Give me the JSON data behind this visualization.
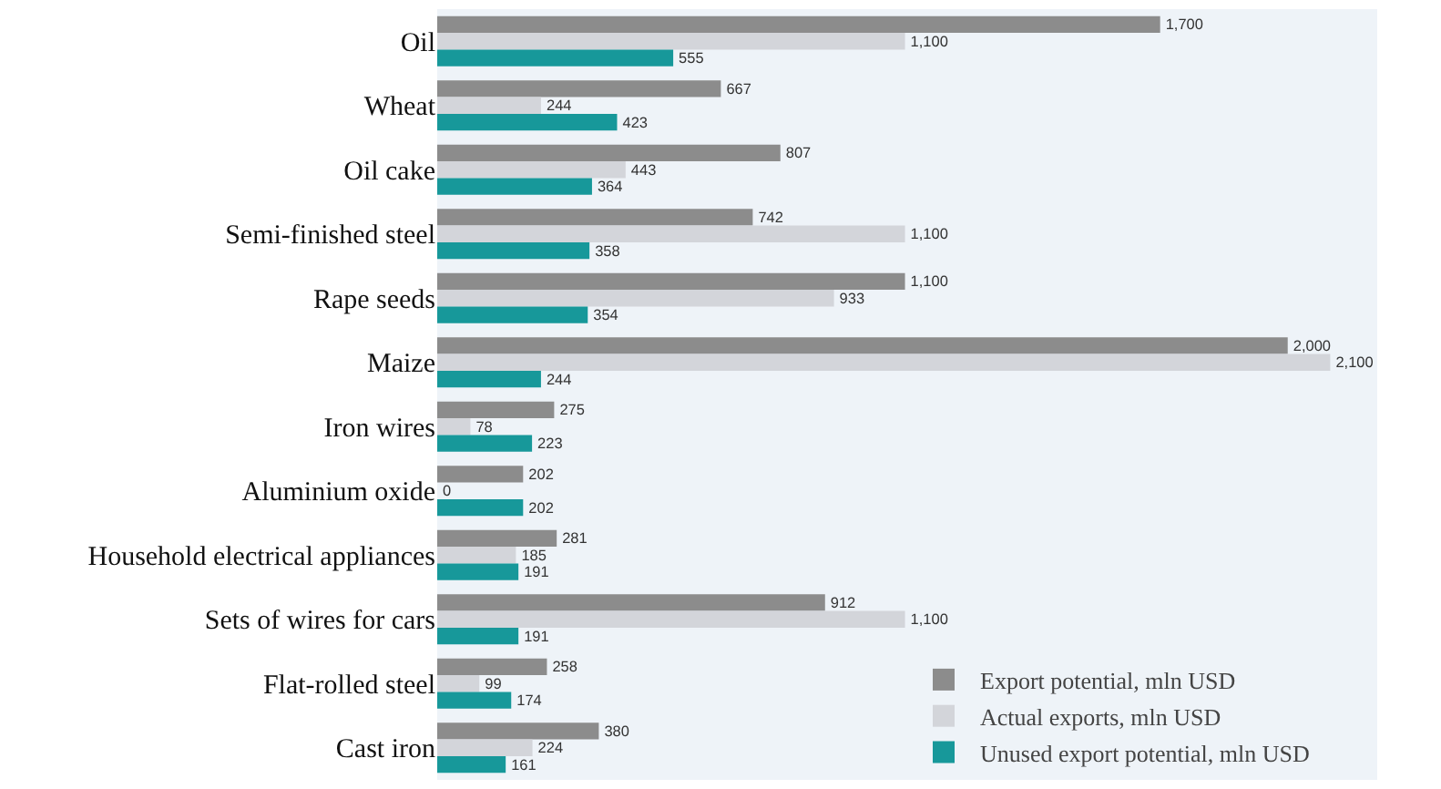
{
  "chart_data": {
    "type": "bar",
    "orientation": "horizontal",
    "legend": "bottom right",
    "categories": [
      "Oil",
      "Wheat",
      "Oil cake",
      "Semi-finished steel",
      "Rape seeds",
      "Maize",
      "Iron wires",
      "Aluminium oxide",
      "Household electrical appliances",
      "Sets of wires for cars",
      "Flat-rolled steel",
      "Cast iron"
    ],
    "series": [
      {
        "name": "Export potential, mln USD",
        "color": "#8c8c8c",
        "values": [
          1700,
          667,
          807,
          742,
          1100,
          2000,
          275,
          202,
          281,
          912,
          258,
          380
        ],
        "value_labels": [
          "1,700",
          "667",
          "807",
          "742",
          "1,100",
          "2,000",
          "275",
          "202",
          "281",
          "912",
          "258",
          "380"
        ]
      },
      {
        "name": "Actual exports, mln USD",
        "color": "#d3d5da",
        "values": [
          1100,
          244,
          443,
          1100,
          933,
          2100,
          78,
          0,
          185,
          1100,
          99,
          224
        ],
        "value_labels": [
          "1,100",
          "244",
          "443",
          "1,100",
          "933",
          "2,100",
          "78",
          "0",
          "185",
          "1,100",
          "99",
          "224"
        ]
      },
      {
        "name": "Unused export potential, mln USD",
        "color": "#17989a",
        "values": [
          555,
          423,
          364,
          358,
          354,
          244,
          223,
          202,
          191,
          191,
          174,
          161
        ],
        "value_labels": [
          "555",
          "423",
          "364",
          "358",
          "354",
          "244",
          "223",
          "202",
          "191",
          "191",
          "174",
          "161"
        ]
      }
    ]
  }
}
